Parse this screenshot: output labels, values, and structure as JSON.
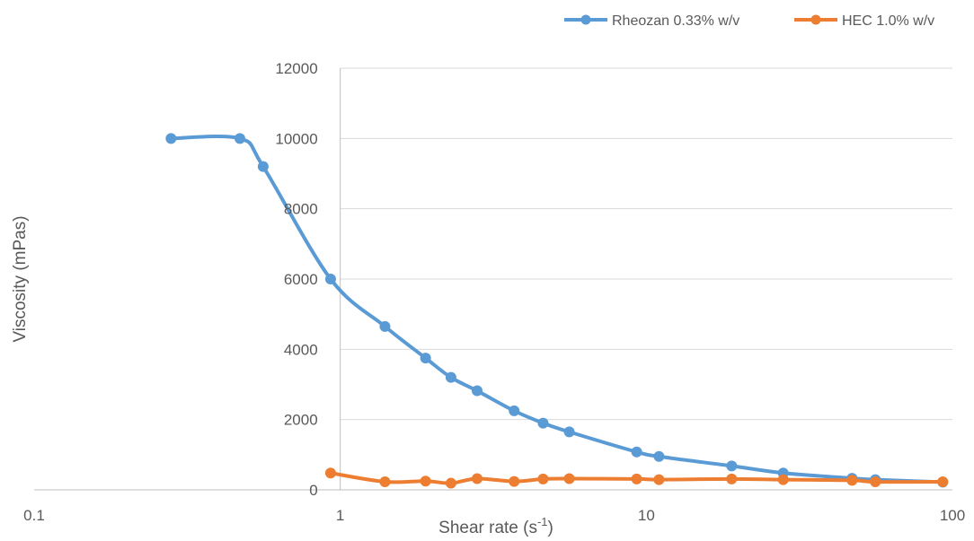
{
  "chart_data": {
    "type": "line",
    "title": "",
    "xlabel": "Shear rate (s",
    "xlabel_sup": "-1",
    "xlabel_close": ")",
    "ylabel": "Viscosity (mPas)",
    "x_scale": "log",
    "xlim": [
      0.1,
      100
    ],
    "ylim": [
      0,
      12000
    ],
    "x_ticks": [
      0.1,
      1,
      10,
      100
    ],
    "x_tick_labels": [
      "0.1",
      "1",
      "10",
      "100"
    ],
    "y_ticks": [
      0,
      2000,
      4000,
      6000,
      8000,
      10000,
      12000
    ],
    "y_tick_labels": [
      "0",
      "2000",
      "4000",
      "6000",
      "8000",
      "10000",
      "12000"
    ],
    "grid": "horizontal",
    "legend_position": "top-right",
    "series": [
      {
        "name": "Rheozan 0.33% w/v",
        "color": "#5B9BD5",
        "x": [
          0.28,
          0.47,
          0.56,
          0.93,
          1.4,
          1.9,
          2.3,
          2.8,
          3.7,
          4.6,
          5.6,
          9.3,
          11,
          19,
          28,
          47,
          56,
          93
        ],
        "y": [
          10000,
          10000,
          9200,
          6000,
          4650,
          3750,
          3200,
          2820,
          2250,
          1900,
          1650,
          1080,
          950,
          680,
          480,
          330,
          290,
          220
        ]
      },
      {
        "name": "HEC 1.0% w/v",
        "color": "#ED7D31",
        "x": [
          0.93,
          1.4,
          1.9,
          2.3,
          2.8,
          3.7,
          4.6,
          5.6,
          9.3,
          11,
          19,
          28,
          47,
          56,
          93
        ],
        "y": [
          480,
          230,
          250,
          190,
          320,
          240,
          310,
          320,
          310,
          290,
          310,
          290,
          270,
          230,
          230
        ]
      }
    ]
  }
}
